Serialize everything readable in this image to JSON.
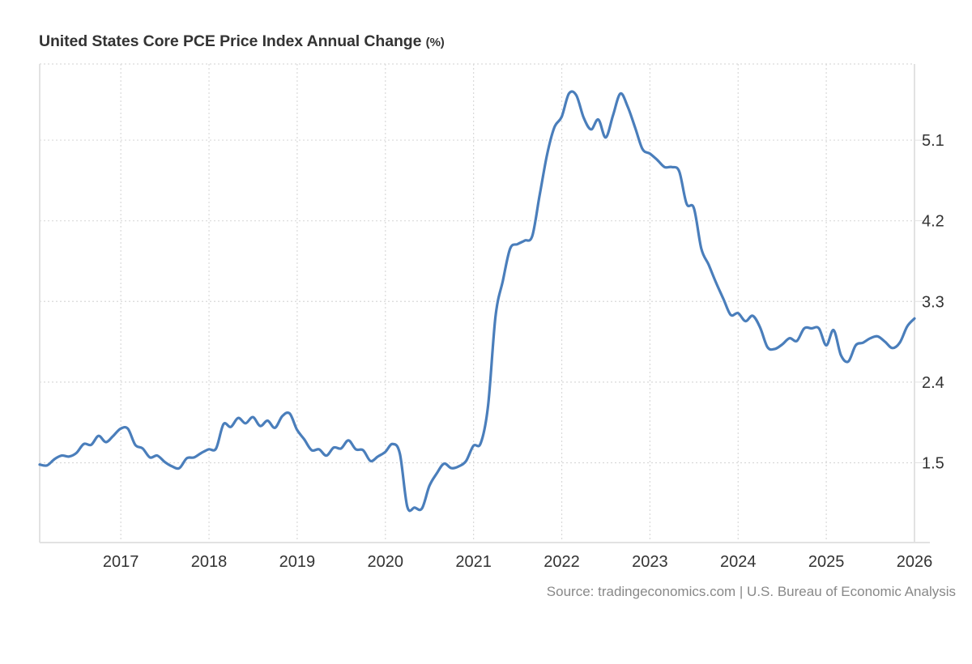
{
  "title": "United States Core PCE Price Index Annual Change",
  "title_unit": "(%)",
  "source": "Source: tradingeconomics.com | U.S. Bureau of Economic Analysis",
  "colors": {
    "line": "#4a7ebb",
    "grid": "#d9d9d9",
    "axis": "#e2e2e2",
    "text": "#333333",
    "source_text": "#888888"
  },
  "chart_data": {
    "type": "line",
    "title": "United States Core PCE Price Index Annual Change (%)",
    "xlabel": "",
    "ylabel": "",
    "x_start": "2016-02",
    "x_end": "2026-01",
    "frequency": "monthly",
    "xlim": [
      2016.08,
      2026.0
    ],
    "ylim": [
      0.61,
      5.95
    ],
    "x_ticks": [
      "2017",
      "2018",
      "2019",
      "2020",
      "2021",
      "2022",
      "2023",
      "2024",
      "2025",
      "2026"
    ],
    "y_ticks": [
      1.5,
      2.4,
      3.3,
      4.2,
      5.1
    ],
    "y_tick_labels": [
      "1.5",
      "2.4",
      "3.3",
      "4.2",
      "5.1"
    ],
    "y_axis_side": "right",
    "grid": true,
    "legend": "none",
    "series": [
      {
        "name": "Core PCE Price Index Annual Change",
        "values": [
          1.48,
          1.47,
          1.54,
          1.58,
          1.57,
          1.61,
          1.71,
          1.7,
          1.8,
          1.73,
          1.8,
          1.88,
          1.88,
          1.7,
          1.66,
          1.56,
          1.58,
          1.51,
          1.46,
          1.44,
          1.55,
          1.56,
          1.61,
          1.65,
          1.66,
          1.93,
          1.9,
          2.0,
          1.94,
          2.01,
          1.91,
          1.97,
          1.89,
          2.02,
          2.05,
          1.87,
          1.76,
          1.64,
          1.65,
          1.58,
          1.67,
          1.66,
          1.75,
          1.65,
          1.64,
          1.52,
          1.57,
          1.62,
          1.71,
          1.6,
          1.01,
          1.0,
          0.99,
          1.24,
          1.38,
          1.49,
          1.44,
          1.46,
          1.52,
          1.69,
          1.72,
          2.14,
          3.13,
          3.53,
          3.89,
          3.94,
          3.98,
          4.03,
          4.48,
          4.93,
          5.24,
          5.36,
          5.62,
          5.6,
          5.35,
          5.22,
          5.33,
          5.13,
          5.38,
          5.62,
          5.47,
          5.24,
          5.0,
          4.95,
          4.88,
          4.8,
          4.8,
          4.75,
          4.39,
          4.34,
          3.89,
          3.71,
          3.51,
          3.33,
          3.15,
          3.17,
          3.08,
          3.14,
          3.01,
          2.79,
          2.77,
          2.82,
          2.89,
          2.86,
          3.0,
          3.0,
          3.0,
          2.81,
          2.98,
          2.7,
          2.63,
          2.81,
          2.84,
          2.89,
          2.91,
          2.85,
          2.78,
          2.84,
          3.02,
          3.11
        ]
      }
    ]
  }
}
